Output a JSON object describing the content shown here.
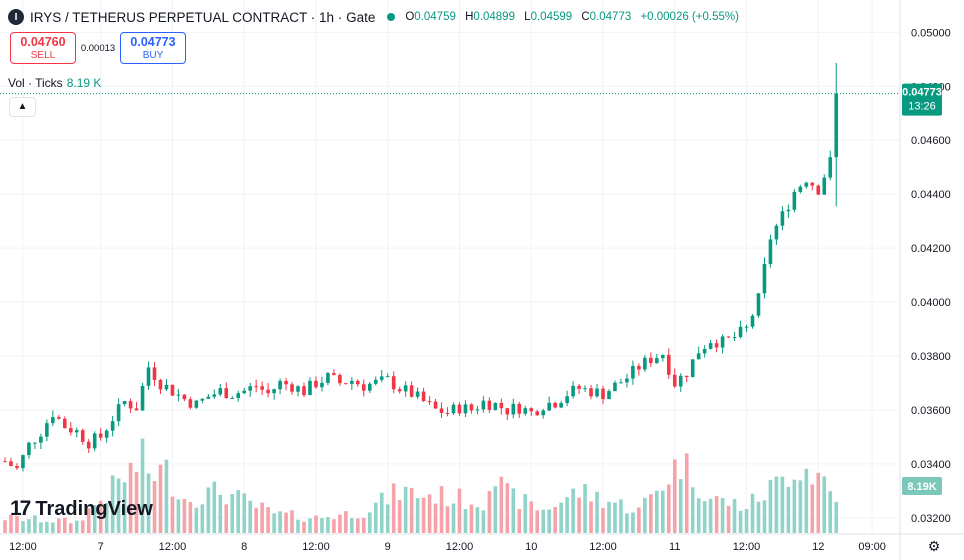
{
  "header": {
    "symbol_title": "IRYS / TETHERUS PERPETUAL CONTRACT · 1h · Gate",
    "logo_letter": "I",
    "ohlc": {
      "o_label": "O",
      "o_value": "0.04759",
      "h_label": "H",
      "h_value": "0.04899",
      "l_label": "L",
      "l_value": "0.04599",
      "c_label": "C",
      "c_value": "0.04773",
      "change": "+0.00026 (+0.55%)"
    }
  },
  "trade": {
    "sell_price": "0.04760",
    "sell_label": "SELL",
    "spread": "0.00013",
    "buy_price": "0.04773",
    "buy_label": "BUY"
  },
  "volume_legend": {
    "label": "Vol · Ticks",
    "value": "8.19 K"
  },
  "collapse_icon": "chevron-up-icon",
  "watermark": "TradingView",
  "colors": {
    "up": "#089981",
    "down": "#f23645",
    "up_vol": "#90d4c9",
    "down_vol": "#f5a3a8"
  },
  "chart_data": {
    "type": "candlestick",
    "price_axis": {
      "ticks": [
        0.032,
        0.034,
        0.036,
        0.038,
        0.04,
        0.042,
        0.044,
        0.046,
        0.048,
        0.05
      ],
      "tick_labels": [
        "0.03200",
        "0.03400",
        "0.03600",
        "0.03800",
        "0.04000",
        "0.04200",
        "0.04400",
        "0.04600",
        "0.04800",
        "0.05000"
      ],
      "range": [
        0.0314,
        0.0512
      ]
    },
    "time_axis": {
      "labels": [
        "12:00",
        "7",
        "12:00",
        "8",
        "12:00",
        "9",
        "12:00",
        "10",
        "12:00",
        "11",
        "12:00",
        "12",
        "09:00"
      ],
      "label_bar_index": [
        3,
        16,
        28,
        40,
        52,
        64,
        76,
        88,
        100,
        112,
        124,
        136,
        145
      ]
    },
    "last_price_label": {
      "price": "0.04773",
      "countdown": "13:26"
    },
    "volume_label": "8.19K",
    "grid": true,
    "waypoints": [
      [
        0,
        0.0341
      ],
      [
        2,
        0.0338
      ],
      [
        4,
        0.0347
      ],
      [
        6,
        0.0352
      ],
      [
        8,
        0.0359
      ],
      [
        10,
        0.0354
      ],
      [
        12,
        0.0352
      ],
      [
        14,
        0.0348
      ],
      [
        16,
        0.035
      ],
      [
        18,
        0.0357
      ],
      [
        20,
        0.0363
      ],
      [
        22,
        0.0361
      ],
      [
        24,
        0.0376
      ],
      [
        26,
        0.037
      ],
      [
        28,
        0.0367
      ],
      [
        30,
        0.0364
      ],
      [
        32,
        0.0362
      ],
      [
        34,
        0.0365
      ],
      [
        36,
        0.0367
      ],
      [
        38,
        0.0366
      ],
      [
        40,
        0.0367
      ],
      [
        42,
        0.0369
      ],
      [
        44,
        0.0366
      ],
      [
        46,
        0.037
      ],
      [
        48,
        0.0369
      ],
      [
        50,
        0.0367
      ],
      [
        52,
        0.037
      ],
      [
        54,
        0.0372
      ],
      [
        56,
        0.037
      ],
      [
        58,
        0.0371
      ],
      [
        60,
        0.0369
      ],
      [
        62,
        0.037
      ],
      [
        64,
        0.0371
      ],
      [
        66,
        0.0368
      ],
      [
        68,
        0.0366
      ],
      [
        70,
        0.0363
      ],
      [
        72,
        0.036
      ],
      [
        74,
        0.0359
      ],
      [
        76,
        0.0361
      ],
      [
        78,
        0.036
      ],
      [
        80,
        0.0363
      ],
      [
        82,
        0.0362
      ],
      [
        84,
        0.036
      ],
      [
        86,
        0.0361
      ],
      [
        88,
        0.0359
      ],
      [
        90,
        0.0362
      ],
      [
        92,
        0.0363
      ],
      [
        94,
        0.0366
      ],
      [
        96,
        0.0368
      ],
      [
        98,
        0.0367
      ],
      [
        100,
        0.0366
      ],
      [
        102,
        0.0369
      ],
      [
        104,
        0.0372
      ],
      [
        106,
        0.0376
      ],
      [
        108,
        0.0379
      ],
      [
        110,
        0.0381
      ],
      [
        112,
        0.037
      ],
      [
        114,
        0.0374
      ],
      [
        116,
        0.0382
      ],
      [
        118,
        0.0386
      ],
      [
        120,
        0.0385
      ],
      [
        122,
        0.0387
      ],
      [
        124,
        0.039
      ],
      [
        126,
        0.0401
      ],
      [
        128,
        0.0424
      ],
      [
        130,
        0.0432
      ],
      [
        132,
        0.0441
      ],
      [
        134,
        0.0446
      ],
      [
        136,
        0.0442
      ],
      [
        138,
        0.0452
      ],
      [
        139,
        0.0477
      ]
    ],
    "volume_range": [
      0,
      1
    ],
    "volume_profile": [
      [
        0,
        0.2
      ],
      [
        12,
        0.15
      ],
      [
        23,
        0.95
      ],
      [
        24,
        0.8
      ],
      [
        27,
        0.8
      ],
      [
        30,
        0.45
      ],
      [
        36,
        0.55
      ],
      [
        45,
        0.25
      ],
      [
        52,
        0.2
      ],
      [
        60,
        0.28
      ],
      [
        66,
        0.55
      ],
      [
        70,
        0.5
      ],
      [
        72,
        0.5
      ],
      [
        80,
        0.4
      ],
      [
        81,
        0.8
      ],
      [
        84,
        0.5
      ],
      [
        90,
        0.3
      ],
      [
        96,
        0.55
      ],
      [
        100,
        0.45
      ],
      [
        106,
        0.3
      ],
      [
        112,
        0.85
      ],
      [
        113,
        0.95
      ],
      [
        118,
        0.45
      ],
      [
        124,
        0.35
      ],
      [
        130,
        0.7
      ],
      [
        132,
        0.9
      ],
      [
        134,
        0.85
      ],
      [
        137,
        0.7
      ],
      [
        139,
        0.4
      ]
    ]
  }
}
